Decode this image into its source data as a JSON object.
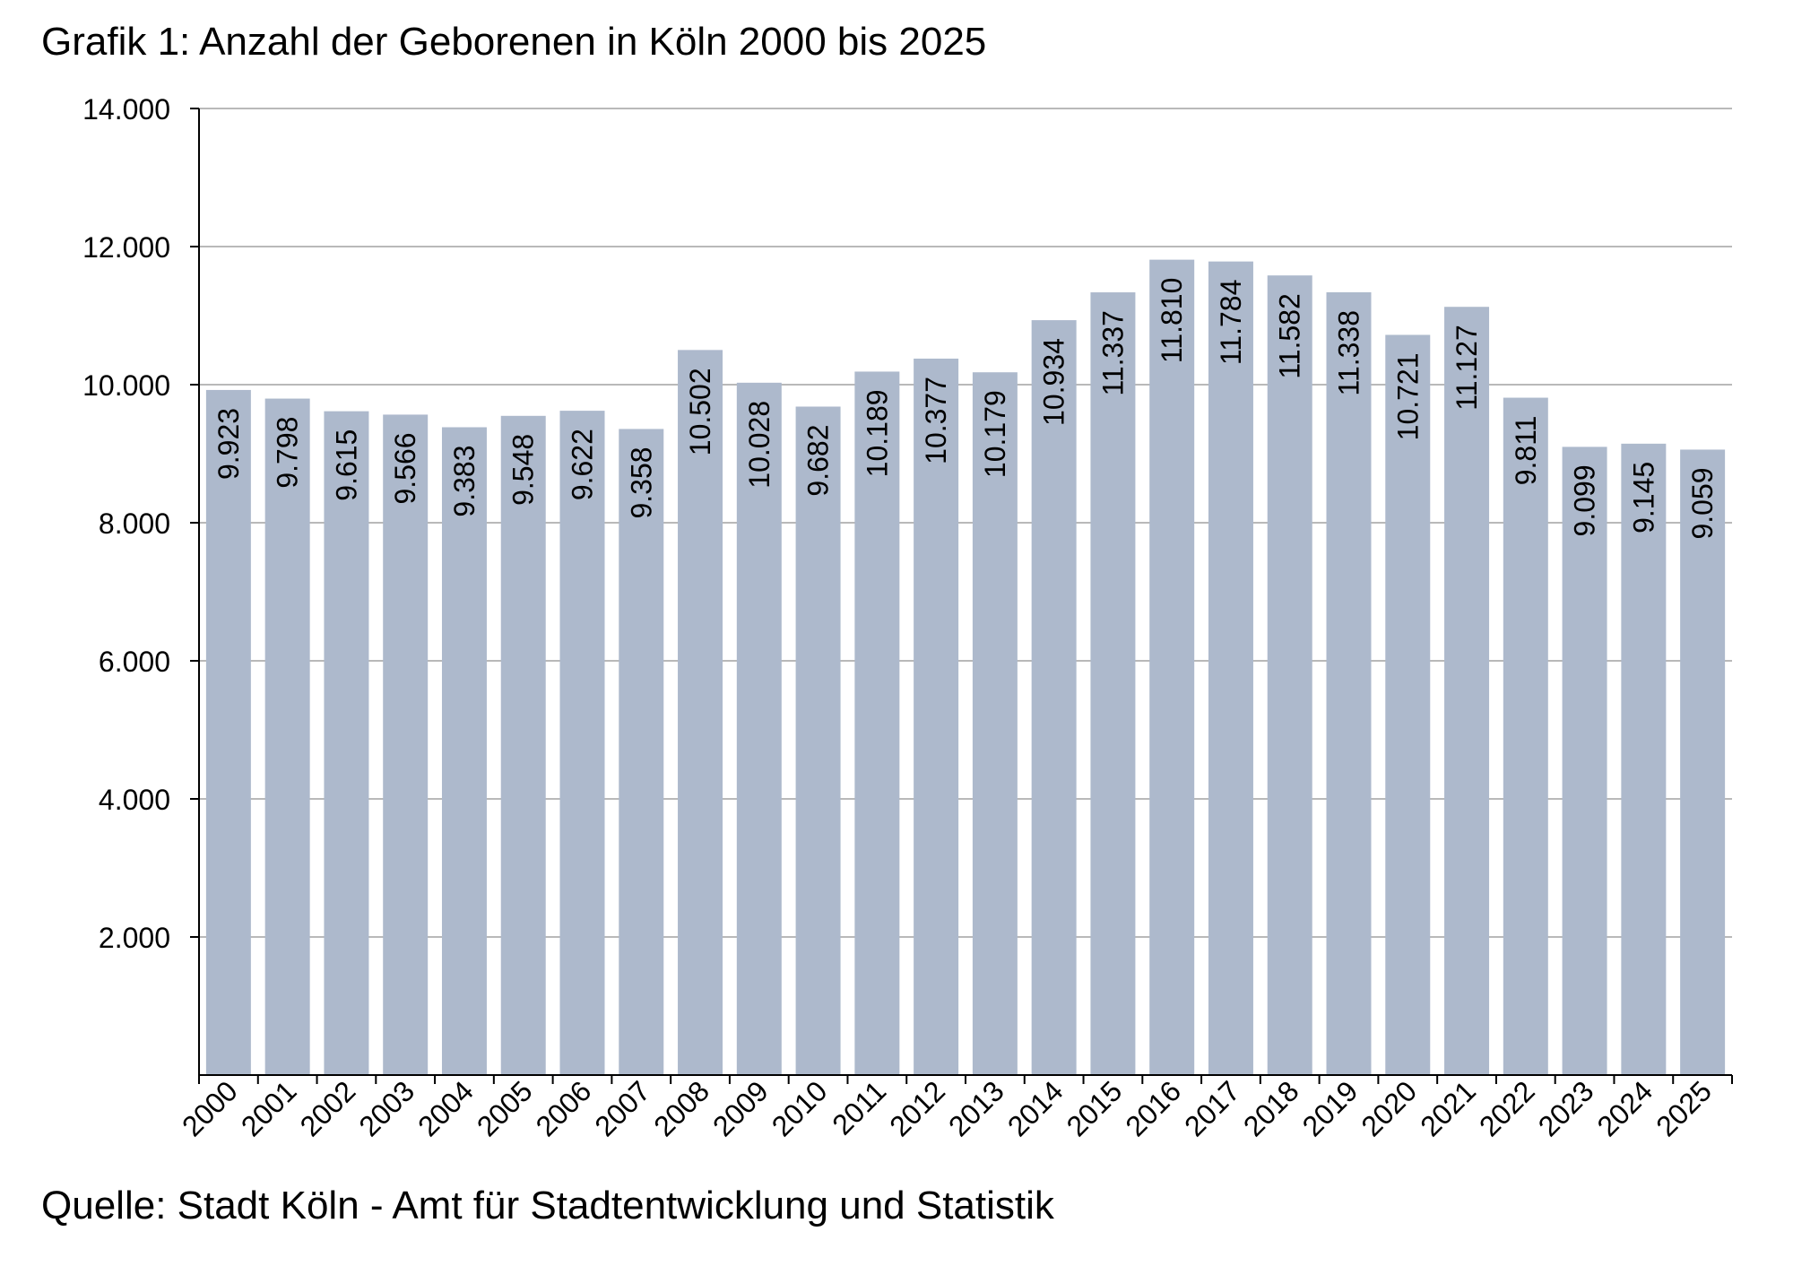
{
  "chart_data": {
    "type": "bar",
    "title": "Grafik 1: Anzahl der Geborenen  in Köln 2000 bis 2025",
    "source": "Quelle: Stadt Köln - Amt für Stadtentwicklung und Statistik",
    "xlabel": "",
    "ylabel": "",
    "ylim": [
      0,
      14000
    ],
    "yticks": [
      2000,
      4000,
      6000,
      8000,
      10000,
      12000,
      14000
    ],
    "ytick_labels": [
      "2.000",
      "4.000",
      "6.000",
      "8.000",
      "10.000",
      "12.000",
      "14.000"
    ],
    "grid": true,
    "legend": "none",
    "bar_color": "#adb9cc",
    "categories": [
      "2000",
      "2001",
      "2002",
      "2003",
      "2004",
      "2005",
      "2006",
      "2007",
      "2008",
      "2009",
      "2010",
      "2011",
      "2012",
      "2013",
      "2014",
      "2015",
      "2016",
      "2017",
      "2018",
      "2019",
      "2020",
      "2021",
      "2022",
      "2023",
      "2024",
      "2025"
    ],
    "values": [
      9923,
      9798,
      9615,
      9566,
      9383,
      9548,
      9622,
      9358,
      10502,
      10028,
      9682,
      10189,
      10377,
      10179,
      10934,
      11337,
      11810,
      11784,
      11582,
      11338,
      10721,
      11127,
      9811,
      9099,
      9145,
      9059
    ],
    "value_labels": [
      "9.923",
      "9.798",
      "9.615",
      "9.566",
      "9.383",
      "9.548",
      "9.622",
      "9.358",
      "10.502",
      "10.028",
      "9.682",
      "10.189",
      "10.377",
      "10.179",
      "10.934",
      "11.337",
      "11.810",
      "11.784",
      "11.582",
      "11.338",
      "10.721",
      "11.127",
      "9.811",
      "9.099",
      "9.145",
      "9.059"
    ]
  }
}
